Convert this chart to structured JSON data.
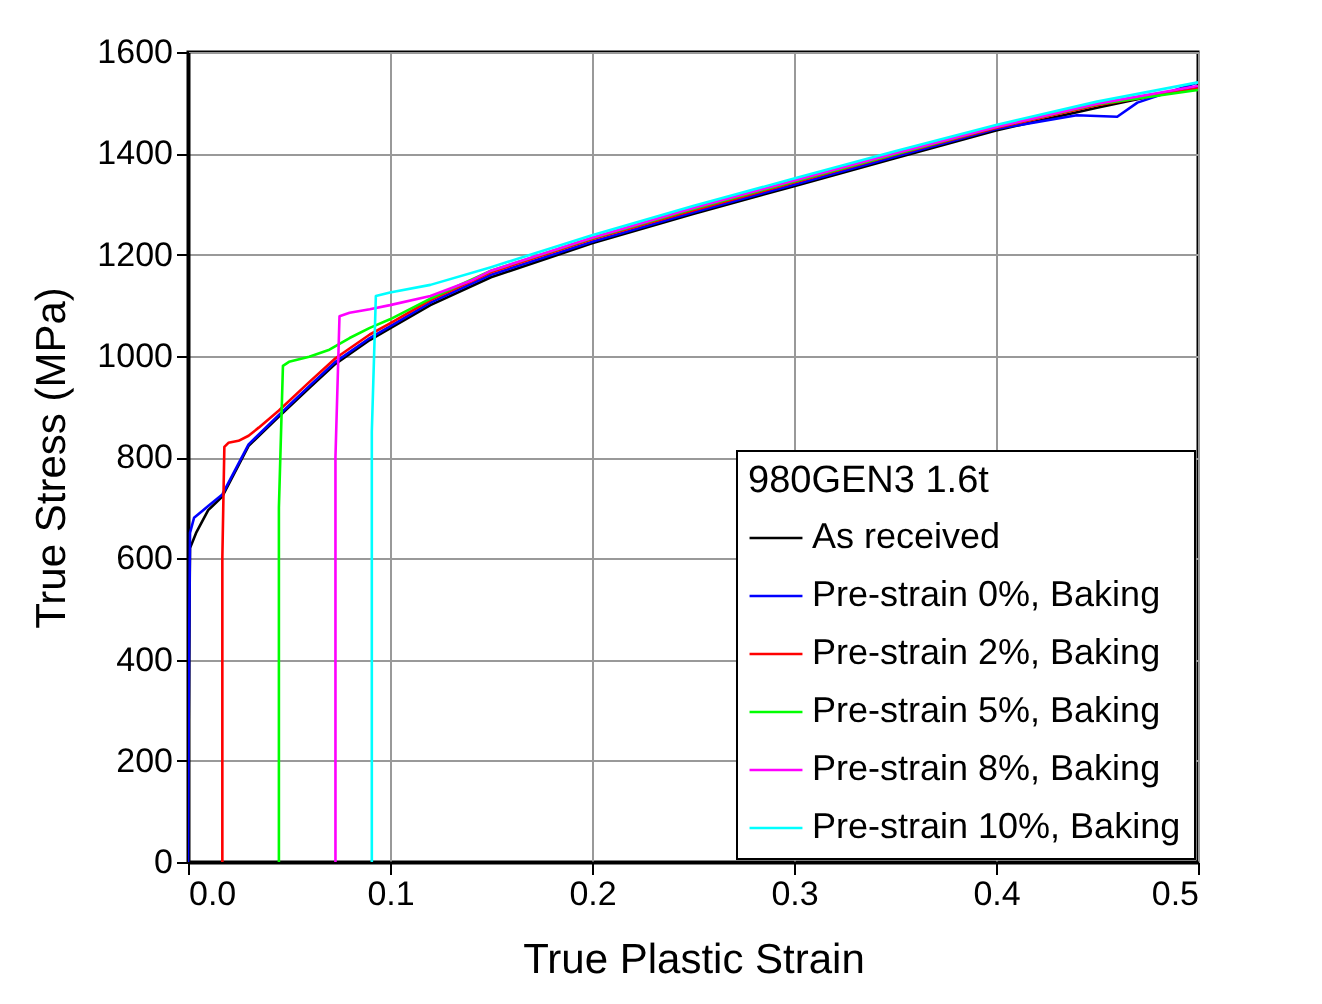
{
  "chart_data": {
    "type": "line",
    "xlabel": "True Plastic Strain",
    "ylabel": "True Stress (MPa)",
    "legend_title": "980GEN3 1.6t",
    "xlim": [
      0,
      0.5
    ],
    "xticks": [
      {
        "value": 0,
        "label": "0.0"
      },
      0.1,
      0.2,
      0.3,
      0.4,
      0.5
    ],
    "ylim": [
      0,
      1600
    ],
    "yticks": [
      0,
      200,
      400,
      600,
      800,
      1000,
      1200,
      1400,
      1600
    ],
    "grid": true,
    "legend": "bottom right",
    "line_style": "solid",
    "marker": "none",
    "series": [
      {
        "name": "As received",
        "color": "#000000",
        "x": [
          0,
          0.0005,
          0.001,
          0.004,
          0.01,
          0.017,
          0.03,
          0.045,
          0.06,
          0.073,
          0.09,
          0.1,
          0.12,
          0.15,
          0.2,
          0.25,
          0.3,
          0.35,
          0.4,
          0.45,
          0.5
        ],
        "values": [
          0,
          400,
          620,
          650,
          695,
          722,
          822,
          880,
          936,
          984,
          1031,
          1054,
          1100,
          1155,
          1222,
          1280,
          1335,
          1390,
          1445,
          1490,
          1532
        ]
      },
      {
        "name": "Pre-strain 0%, Baking",
        "color": "#0000ff",
        "x": [
          0,
          0.0005,
          0.001,
          0.003,
          0.01,
          0.017,
          0.03,
          0.045,
          0.06,
          0.073,
          0.09,
          0.1,
          0.12,
          0.15,
          0.2,
          0.25,
          0.3,
          0.35,
          0.4,
          0.44,
          0.46,
          0.47,
          0.5
        ],
        "values": [
          0,
          400,
          650,
          680,
          703,
          726,
          825,
          883,
          940,
          988,
          1035,
          1058,
          1105,
          1160,
          1225,
          1283,
          1338,
          1393,
          1448,
          1475,
          1472,
          1500,
          1540
        ]
      },
      {
        "name": "Pre-strain 2%, Baking",
        "color": "#ff0000",
        "x": [
          0.017,
          0.017,
          0.018,
          0.02,
          0.025,
          0.03,
          0.035,
          0.045,
          0.06,
          0.073,
          0.09,
          0.1,
          0.12,
          0.15,
          0.2,
          0.25,
          0.3,
          0.35,
          0.4,
          0.45,
          0.5
        ],
        "values": [
          0,
          600,
          820,
          828,
          832,
          842,
          858,
          892,
          948,
          995,
          1042,
          1064,
          1110,
          1165,
          1230,
          1287,
          1342,
          1397,
          1450,
          1495,
          1528
        ]
      },
      {
        "name": "Pre-strain 5%, Baking",
        "color": "#00ff00",
        "x": [
          0.045,
          0.045,
          0.047,
          0.05,
          0.06,
          0.07,
          0.08,
          0.09,
          0.1,
          0.12,
          0.15,
          0.2,
          0.25,
          0.3,
          0.35,
          0.4,
          0.45,
          0.5
        ],
        "values": [
          0,
          700,
          980,
          988,
          998,
          1012,
          1035,
          1055,
          1072,
          1113,
          1168,
          1232,
          1290,
          1344,
          1398,
          1452,
          1497,
          1525
        ]
      },
      {
        "name": "Pre-strain 8%, Baking",
        "color": "#ff00ff",
        "x": [
          0.073,
          0.073,
          0.075,
          0.08,
          0.09,
          0.1,
          0.12,
          0.14,
          0.15,
          0.2,
          0.25,
          0.3,
          0.35,
          0.4,
          0.45,
          0.5
        ],
        "values": [
          0,
          800,
          1078,
          1085,
          1092,
          1100,
          1118,
          1148,
          1168,
          1233,
          1292,
          1346,
          1400,
          1452,
          1498,
          1533
        ]
      },
      {
        "name": "Pre-strain 10%, Baking",
        "color": "#00ffff",
        "x": [
          0.091,
          0.091,
          0.093,
          0.1,
          0.12,
          0.15,
          0.2,
          0.25,
          0.3,
          0.35,
          0.4,
          0.45,
          0.5
        ],
        "values": [
          0,
          850,
          1118,
          1125,
          1140,
          1175,
          1238,
          1296,
          1350,
          1404,
          1456,
          1502,
          1540
        ]
      }
    ]
  }
}
